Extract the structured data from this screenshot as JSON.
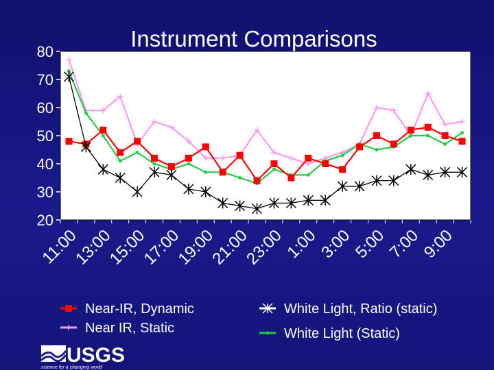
{
  "chart_data": {
    "type": "line",
    "title": "Instrument Comparisons",
    "xlabel": "",
    "ylabel": "",
    "ylim": [
      20,
      80
    ],
    "yticks": [
      20,
      30,
      40,
      50,
      60,
      70,
      80
    ],
    "x_tick_labels": [
      "11:00",
      "13:00",
      "15:00",
      "17:00",
      "19:00",
      "21:00",
      "23:00",
      "1:00",
      "3:00",
      "5:00",
      "7:00",
      "9:00"
    ],
    "legend_position": "bottom",
    "series": [
      {
        "name": "Near-IR, Dynamic",
        "color": "#ff0000",
        "marker": "square",
        "values": [
          48,
          47,
          52,
          44,
          48,
          42,
          39,
          42,
          46,
          37,
          43,
          34,
          40,
          35,
          42,
          40,
          38,
          46,
          50,
          47,
          52,
          53,
          50,
          48
        ]
      },
      {
        "name": "Near IR, Static",
        "color": "#ff99ee",
        "marker": "plus",
        "values": [
          77,
          59,
          59,
          64,
          47,
          55,
          53,
          48,
          42,
          42,
          43,
          52,
          44,
          42,
          40,
          42,
          44,
          47,
          60,
          59,
          50,
          65,
          54,
          55
        ]
      },
      {
        "name": "White Light, Ratio (static)",
        "color": "#ffffff",
        "marker": "asterisk",
        "values": [
          71,
          46,
          38,
          35,
          30,
          37,
          36,
          31,
          30,
          26,
          25,
          24,
          26,
          26,
          27,
          27,
          32,
          32,
          34,
          34,
          38,
          36,
          37,
          37
        ]
      },
      {
        "name": "White Light (Static)",
        "color": "#22cc44",
        "marker": "dot",
        "values": [
          73,
          58,
          50,
          41,
          44,
          40,
          38,
          40,
          37,
          37,
          35,
          33,
          38,
          36,
          36,
          41,
          43,
          47,
          45,
          46,
          50,
          50,
          47,
          51
        ]
      }
    ]
  },
  "logo": {
    "text": "USGS",
    "tagline": "science for a changing world"
  },
  "colors": {
    "background": "#1a1a8c",
    "plot_area": "#ffffff",
    "accent": "#ffffff"
  }
}
